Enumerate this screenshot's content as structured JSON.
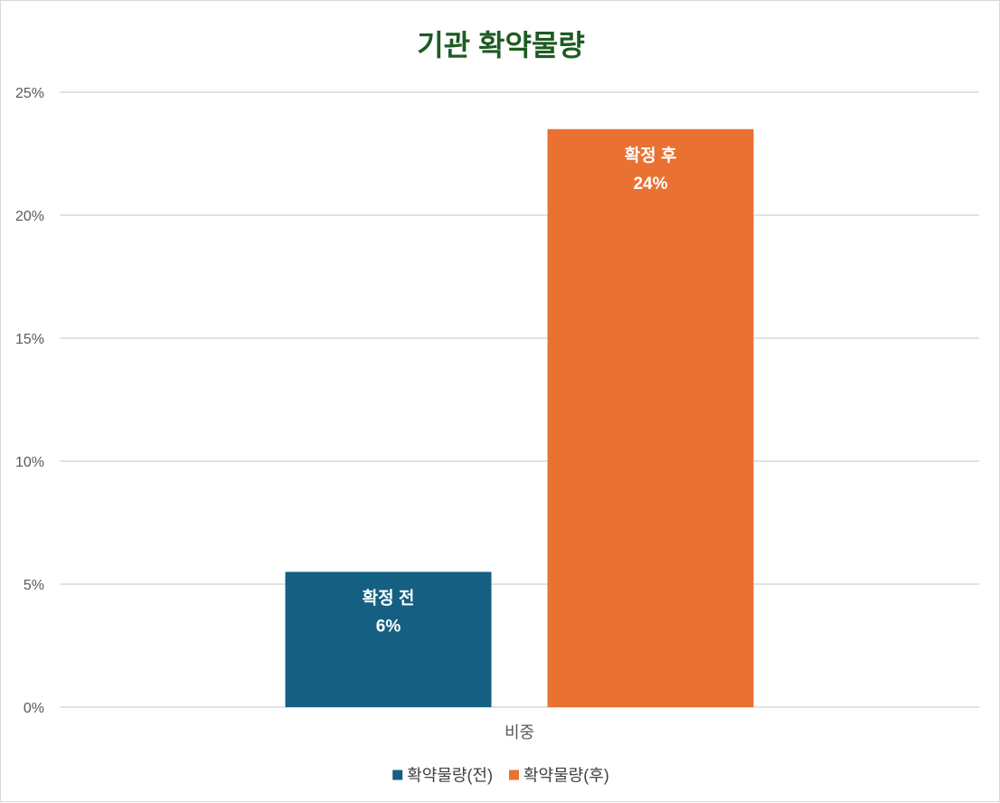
{
  "chart_data": {
    "type": "bar",
    "title": "기관 확약물량",
    "categories": [
      "비중"
    ],
    "series": [
      {
        "name": "확약물량(전)",
        "values": [
          0.055
        ],
        "label_lines": [
          "확정 전",
          "6%"
        ],
        "color": "#156082"
      },
      {
        "name": "확약물량(후)",
        "values": [
          0.235
        ],
        "label_lines": [
          "확정 후",
          "24%"
        ],
        "color": "#e97132"
      }
    ],
    "ylim": [
      0,
      0.25
    ],
    "yticks": [
      {
        "value": 0,
        "label": "0%"
      },
      {
        "value": 0.05,
        "label": "5%"
      },
      {
        "value": 0.1,
        "label": "10%"
      },
      {
        "value": 0.15,
        "label": "15%"
      },
      {
        "value": 0.2,
        "label": "20%"
      },
      {
        "value": 0.25,
        "label": "25%"
      }
    ],
    "grid": true,
    "legend": "bottom"
  }
}
